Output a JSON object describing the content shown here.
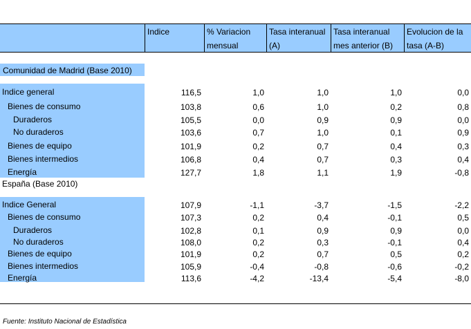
{
  "headers": {
    "col0": "",
    "indice": "Indice",
    "var_mensual": "% Variacion mensual",
    "tasa_a": "Tasa interanual (A)",
    "tasa_b": "Tasa interanual mes anterior (B)",
    "evolucion": "Evolucion de la tasa (A-B)"
  },
  "madrid": {
    "title": "Comunidad de Madrid (Base 2010)",
    "rows": [
      {
        "label": "Indice general",
        "indice": "116,5",
        "var": "1,0",
        "a": "1,0",
        "b": "1,0",
        "ab": "0,0"
      },
      {
        "label": "Bienes de consumo",
        "indice": "103,8",
        "var": "0,6",
        "a": "1,0",
        "b": "0,2",
        "ab": "0,8"
      },
      {
        "label": "Duraderos",
        "indice": "105,5",
        "var": "0,0",
        "a": "0,9",
        "b": "0,9",
        "ab": "0,0"
      },
      {
        "label": "No duraderos",
        "indice": "103,6",
        "var": "0,7",
        "a": "1,0",
        "b": "0,1",
        "ab": "0,9"
      },
      {
        "label": "Bienes de equipo",
        "indice": "101,9",
        "var": "0,2",
        "a": "0,7",
        "b": "0,4",
        "ab": "0,3"
      },
      {
        "label": "Bienes intermedios",
        "indice": "106,8",
        "var": "0,4",
        "a": "0,7",
        "b": "0,3",
        "ab": "0,4"
      },
      {
        "label": "Energía",
        "indice": "127,7",
        "var": "1,8",
        "a": "1,1",
        "b": "1,9",
        "ab": "-0,8"
      }
    ]
  },
  "espana": {
    "title": "España (Base 2010)",
    "rows": [
      {
        "label": "Indice General",
        "indice": "107,9",
        "var": "-1,1",
        "a": "-3,7",
        "b": "-1,5",
        "ab": "-2,2"
      },
      {
        "label": "Bienes de consumo",
        "indice": "107,3",
        "var": "0,2",
        "a": "0,4",
        "b": "-0,1",
        "ab": "0,5"
      },
      {
        "label": "Duraderos",
        "indice": "102,8",
        "var": "0,1",
        "a": "0,9",
        "b": "0,9",
        "ab": "0,0"
      },
      {
        "label": "No duraderos",
        "indice": "108,0",
        "var": "0,2",
        "a": "0,3",
        "b": "-0,1",
        "ab": "0,4"
      },
      {
        "label": "Bienes de equipo",
        "indice": "101,9",
        "var": "0,2",
        "a": "0,7",
        "b": "0,5",
        "ab": "0,2"
      },
      {
        "label": "Bienes intermedios",
        "indice": "105,9",
        "var": "-0,4",
        "a": "-0,8",
        "b": "-0,6",
        "ab": "-0,2"
      },
      {
        "label": "Energía",
        "indice": "113,6",
        "var": "-4,2",
        "a": "-13,4",
        "b": "-5,4",
        "ab": "-8,0"
      }
    ]
  },
  "source": "Fuente: Instituto Nacional de Estadística",
  "colors": {
    "label_background": "#99ccff"
  }
}
